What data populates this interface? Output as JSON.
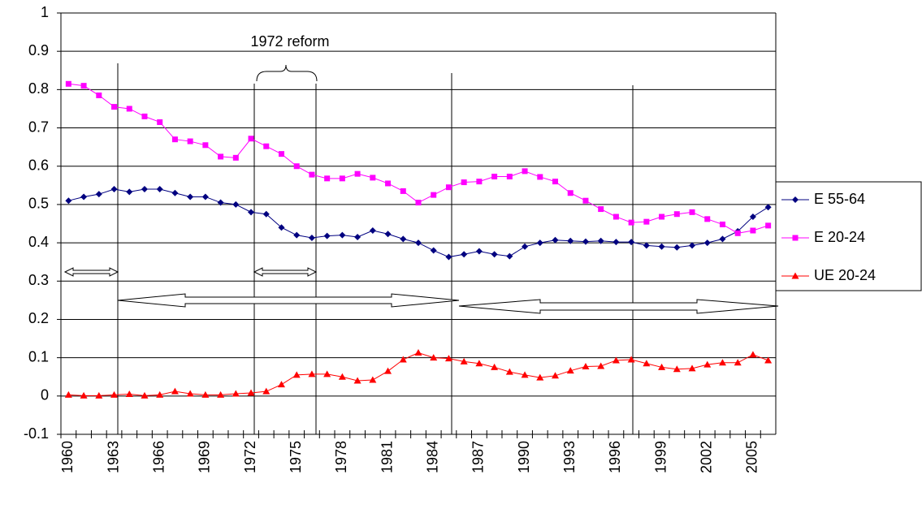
{
  "chart_data": {
    "type": "line",
    "categories": [
      "1960",
      null,
      null,
      "1963",
      null,
      null,
      "1966",
      null,
      null,
      "1969",
      null,
      null,
      "1972",
      null,
      null,
      "1975",
      null,
      null,
      "1978",
      null,
      null,
      "1981",
      null,
      null,
      "1984",
      null,
      null,
      "1987",
      null,
      null,
      "1990",
      null,
      null,
      "1993",
      null,
      null,
      "1996",
      null,
      null,
      "1999",
      null,
      null,
      "2002",
      null,
      null,
      "2005",
      null
    ],
    "series": [
      {
        "name": "E 55-64",
        "color": "#000080",
        "marker": "diamond",
        "values": [
          0.51,
          0.52,
          0.527,
          0.54,
          0.533,
          0.54,
          0.54,
          0.53,
          0.52,
          0.52,
          0.505,
          0.5,
          0.48,
          0.475,
          0.44,
          0.42,
          0.413,
          0.418,
          0.42,
          0.415,
          0.432,
          0.423,
          0.41,
          0.4,
          0.38,
          0.363,
          0.37,
          0.378,
          0.37,
          0.365,
          0.39,
          0.4,
          0.407,
          0.405,
          0.403,
          0.405,
          0.402,
          0.402,
          0.393,
          0.39,
          0.388,
          0.393,
          0.4,
          0.41,
          0.43,
          0.468,
          0.493
        ]
      },
      {
        "name": "E 20-24",
        "color": "#ff00ff",
        "marker": "square",
        "values": [
          0.815,
          0.81,
          0.785,
          0.755,
          0.75,
          0.73,
          0.715,
          0.67,
          0.665,
          0.655,
          0.625,
          0.622,
          0.672,
          0.652,
          0.632,
          0.6,
          0.578,
          0.568,
          0.568,
          0.58,
          0.57,
          0.555,
          0.535,
          0.505,
          0.525,
          0.545,
          0.558,
          0.56,
          0.573,
          0.573,
          0.587,
          0.572,
          0.56,
          0.53,
          0.51,
          0.488,
          0.468,
          0.453,
          0.455,
          0.468,
          0.475,
          0.48,
          0.462,
          0.448,
          0.425,
          0.432,
          0.445
        ]
      },
      {
        "name": "UE 20-24",
        "color": "#ff0000",
        "marker": "triangle",
        "values": [
          0.003,
          0.001,
          0.001,
          0.003,
          0.005,
          0.001,
          0.003,
          0.012,
          0.006,
          0.003,
          0.003,
          0.006,
          0.008,
          0.012,
          0.03,
          0.055,
          0.057,
          0.057,
          0.05,
          0.04,
          0.042,
          0.065,
          0.095,
          0.113,
          0.1,
          0.098,
          0.09,
          0.085,
          0.075,
          0.063,
          0.055,
          0.048,
          0.053,
          0.066,
          0.077,
          0.078,
          0.093,
          0.095,
          0.085,
          0.075,
          0.07,
          0.072,
          0.082,
          0.087,
          0.087,
          0.108,
          0.093
        ]
      }
    ],
    "ylim": [
      -0.1,
      1
    ],
    "yticks": [
      -0.1,
      0,
      0.1,
      0.2,
      0.3,
      0.4,
      0.5,
      0.6,
      0.7,
      0.8,
      0.9,
      1
    ],
    "grid": true,
    "legend": "right",
    "annotation": "1972 reform"
  }
}
